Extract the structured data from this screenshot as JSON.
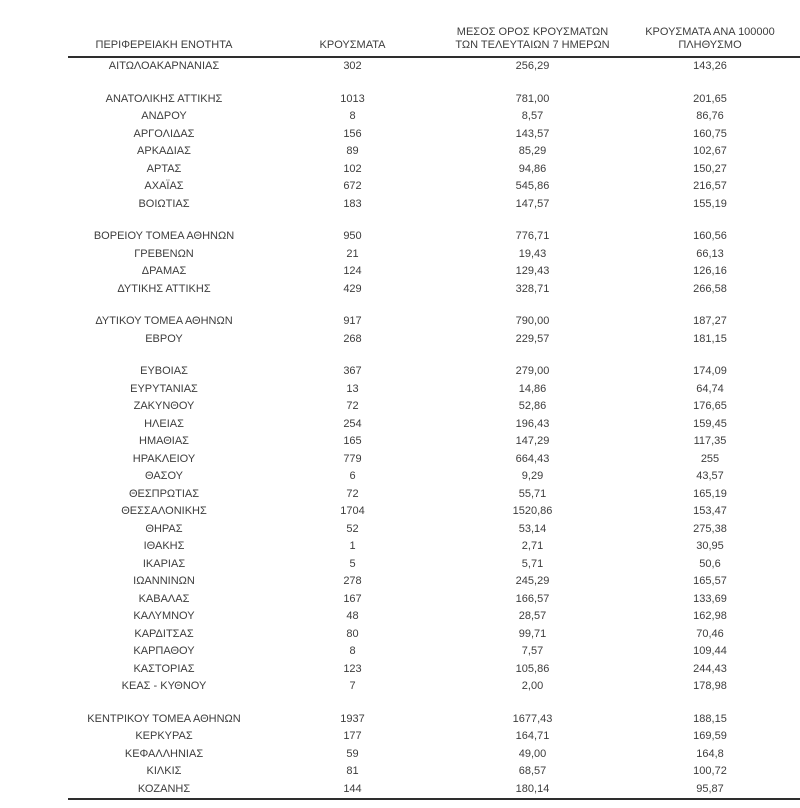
{
  "page": {
    "background_color": "#ffffff",
    "text_color": "#3d3d3d",
    "rule_color": "#2e2e2e"
  },
  "table": {
    "columns": [
      {
        "line1": "",
        "line2": "ΠΕΡΙΦΕΡΕΙΑΚΗ ΕΝΟΤΗΤΑ"
      },
      {
        "line1": "",
        "line2": "ΚΡΟΥΣΜΑΤΑ"
      },
      {
        "line1": "ΜΕΣΟΣ ΟΡΟΣ ΚΡΟΥΣΜΑΤΩΝ",
        "line2": "ΤΩΝ ΤΕΛΕΥΤΑΙΩΝ 7 ΗΜΕΡΩΝ"
      },
      {
        "line1": "ΚΡΟΥΣΜΑΤΑ ΑΝΑ 100000",
        "line2": "ΠΛΗΘΥΣΜΟ"
      }
    ],
    "groups": [
      {
        "rows": [
          {
            "region": "ΑΙΤΩΛΟΑΚΑΡΝΑΝΙΑΣ",
            "cases": "302",
            "avg7": "256,29",
            "per100k": "143,26"
          }
        ]
      },
      {
        "rows": [
          {
            "region": "ΑΝΑΤΟΛΙΚΗΣ ΑΤΤΙΚΗΣ",
            "cases": "1013",
            "avg7": "781,00",
            "per100k": "201,65"
          },
          {
            "region": "ΑΝΔΡΟΥ",
            "cases": "8",
            "avg7": "8,57",
            "per100k": "86,76"
          },
          {
            "region": "ΑΡΓΟΛΙΔΑΣ",
            "cases": "156",
            "avg7": "143,57",
            "per100k": "160,75"
          },
          {
            "region": "ΑΡΚΑΔΙΑΣ",
            "cases": "89",
            "avg7": "85,29",
            "per100k": "102,67"
          },
          {
            "region": "ΑΡΤΑΣ",
            "cases": "102",
            "avg7": "94,86",
            "per100k": "150,27"
          },
          {
            "region": "ΑΧΑΪΑΣ",
            "cases": "672",
            "avg7": "545,86",
            "per100k": "216,57"
          },
          {
            "region": "ΒΟΙΩΤΙΑΣ",
            "cases": "183",
            "avg7": "147,57",
            "per100k": "155,19"
          }
        ]
      },
      {
        "rows": [
          {
            "region": "ΒΟΡΕΙΟΥ ΤΟΜΕΑ ΑΘΗΝΩΝ",
            "cases": "950",
            "avg7": "776,71",
            "per100k": "160,56"
          },
          {
            "region": "ΓΡΕΒΕΝΩΝ",
            "cases": "21",
            "avg7": "19,43",
            "per100k": "66,13"
          },
          {
            "region": "ΔΡΑΜΑΣ",
            "cases": "124",
            "avg7": "129,43",
            "per100k": "126,16"
          },
          {
            "region": "ΔΥΤΙΚΗΣ ΑΤΤΙΚΗΣ",
            "cases": "429",
            "avg7": "328,71",
            "per100k": "266,58"
          }
        ]
      },
      {
        "rows": [
          {
            "region": "ΔΥΤΙΚΟΥ ΤΟΜΕΑ ΑΘΗΝΩΝ",
            "cases": "917",
            "avg7": "790,00",
            "per100k": "187,27"
          },
          {
            "region": "ΕΒΡΟΥ",
            "cases": "268",
            "avg7": "229,57",
            "per100k": "181,15"
          }
        ]
      },
      {
        "rows": [
          {
            "region": "ΕΥΒΟΙΑΣ",
            "cases": "367",
            "avg7": "279,00",
            "per100k": "174,09"
          },
          {
            "region": "ΕΥΡΥΤΑΝΙΑΣ",
            "cases": "13",
            "avg7": "14,86",
            "per100k": "64,74"
          },
          {
            "region": "ΖΑΚΥΝΘΟΥ",
            "cases": "72",
            "avg7": "52,86",
            "per100k": "176,65"
          },
          {
            "region": "ΗΛΕΙΑΣ",
            "cases": "254",
            "avg7": "196,43",
            "per100k": "159,45"
          },
          {
            "region": "ΗΜΑΘΙΑΣ",
            "cases": "165",
            "avg7": "147,29",
            "per100k": "117,35"
          },
          {
            "region": "ΗΡΑΚΛΕΙΟΥ",
            "cases": "779",
            "avg7": "664,43",
            "per100k": "255"
          },
          {
            "region": "ΘΑΣΟΥ",
            "cases": "6",
            "avg7": "9,29",
            "per100k": "43,57"
          },
          {
            "region": "ΘΕΣΠΡΩΤΙΑΣ",
            "cases": "72",
            "avg7": "55,71",
            "per100k": "165,19"
          },
          {
            "region": "ΘΕΣΣΑΛΟΝΙΚΗΣ",
            "cases": "1704",
            "avg7": "1520,86",
            "per100k": "153,47"
          },
          {
            "region": "ΘΗΡΑΣ",
            "cases": "52",
            "avg7": "53,14",
            "per100k": "275,38"
          },
          {
            "region": "ΙΘΑΚΗΣ",
            "cases": "1",
            "avg7": "2,71",
            "per100k": "30,95"
          },
          {
            "region": "ΙΚΑΡΙΑΣ",
            "cases": "5",
            "avg7": "5,71",
            "per100k": "50,6"
          },
          {
            "region": "ΙΩΑΝΝΙΝΩΝ",
            "cases": "278",
            "avg7": "245,29",
            "per100k": "165,57"
          },
          {
            "region": "ΚΑΒΑΛΑΣ",
            "cases": "167",
            "avg7": "166,57",
            "per100k": "133,69"
          },
          {
            "region": "ΚΑΛΥΜΝΟΥ",
            "cases": "48",
            "avg7": "28,57",
            "per100k": "162,98"
          },
          {
            "region": "ΚΑΡΔΙΤΣΑΣ",
            "cases": "80",
            "avg7": "99,71",
            "per100k": "70,46"
          },
          {
            "region": "ΚΑΡΠΑΘΟΥ",
            "cases": "8",
            "avg7": "7,57",
            "per100k": "109,44"
          },
          {
            "region": "ΚΑΣΤΟΡΙΑΣ",
            "cases": "123",
            "avg7": "105,86",
            "per100k": "244,43"
          },
          {
            "region": "ΚΕΑΣ - ΚΥΘΝΟΥ",
            "cases": "7",
            "avg7": "2,00",
            "per100k": "178,98"
          }
        ]
      },
      {
        "rows": [
          {
            "region": "ΚΕΝΤΡΙΚΟΥ ΤΟΜΕΑ ΑΘΗΝΩΝ",
            "cases": "1937",
            "avg7": "1677,43",
            "per100k": "188,15"
          },
          {
            "region": "ΚΕΡΚΥΡΑΣ",
            "cases": "177",
            "avg7": "164,71",
            "per100k": "169,59"
          },
          {
            "region": "ΚΕΦΑΛΛΗΝΙΑΣ",
            "cases": "59",
            "avg7": "49,00",
            "per100k": "164,8"
          },
          {
            "region": "ΚΙΛΚΙΣ",
            "cases": "81",
            "avg7": "68,57",
            "per100k": "100,72"
          },
          {
            "region": "ΚΟΖΑΝΗΣ",
            "cases": "144",
            "avg7": "180,14",
            "per100k": "95,87"
          }
        ]
      }
    ]
  }
}
